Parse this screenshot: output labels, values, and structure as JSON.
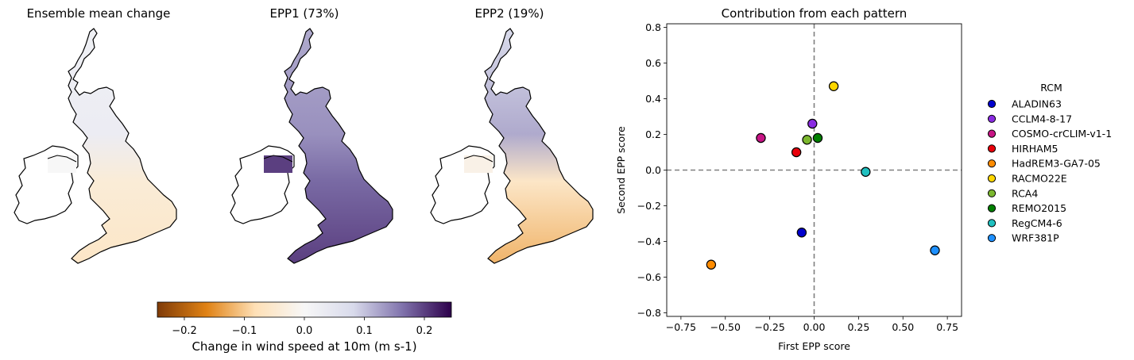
{
  "maps": [
    {
      "title": "Ensemble mean change"
    },
    {
      "title": "EPP1 (73%)"
    },
    {
      "title": "EPP2 (19%)"
    }
  ],
  "colorbar": {
    "label": "Change in wind speed at 10m (m s-1)",
    "ticks": [
      -0.2,
      -0.1,
      0.0,
      0.1,
      0.2
    ],
    "tick_labels": [
      "−0.2",
      "−0.1",
      "0.0",
      "0.1",
      "0.2"
    ],
    "range": [
      -0.245,
      0.245
    ],
    "colormap": "PuOr",
    "stops": [
      "#7f3b08",
      "#e08214",
      "#fee0b6",
      "#f7f7f7",
      "#d8daeb",
      "#8073ac",
      "#2d004b"
    ]
  },
  "chart_data": {
    "type": "scatter",
    "title": "Contribution from each pattern",
    "xlabel": "First EPP score",
    "ylabel": "Second EPP score",
    "xlim": [
      -0.83,
      0.83
    ],
    "ylim": [
      -0.82,
      0.82
    ],
    "xticks": [
      -0.75,
      -0.5,
      -0.25,
      0.0,
      0.25,
      0.5,
      0.75
    ],
    "xtick_labels": [
      "−0.75",
      "−0.50",
      "−0.25",
      "0.00",
      "0.25",
      "0.50",
      "0.75"
    ],
    "yticks": [
      -0.8,
      -0.6,
      -0.4,
      -0.2,
      0.0,
      0.2,
      0.4,
      0.6,
      0.8
    ],
    "ytick_labels": [
      "−0.8",
      "−0.6",
      "−0.4",
      "−0.2",
      "0.0",
      "0.2",
      "0.4",
      "0.6",
      "0.8"
    ],
    "grid": false,
    "reference_lines": {
      "x": 0.0,
      "y": 0.0,
      "style": "dashed",
      "color": "#808080"
    },
    "legend": {
      "title": "RCM",
      "placement": "outside-right"
    },
    "series": [
      {
        "name": "ALADIN63",
        "color": "#0000cd",
        "x": -0.07,
        "y": -0.35
      },
      {
        "name": "CCLM4-8-17",
        "color": "#8a2be2",
        "x": -0.01,
        "y": 0.26
      },
      {
        "name": "COSMO-crCLIM-v1-1",
        "color": "#c71585",
        "x": -0.3,
        "y": 0.18
      },
      {
        "name": "HIRHAM5",
        "color": "#e8000b",
        "x": -0.1,
        "y": 0.1
      },
      {
        "name": "HadREM3-GA7-05",
        "color": "#ff8c00",
        "x": -0.58,
        "y": -0.53
      },
      {
        "name": "RACMO22E",
        "color": "#ffd700",
        "x": 0.11,
        "y": 0.47
      },
      {
        "name": "RCA4",
        "color": "#7cb82f",
        "x": -0.04,
        "y": 0.17
      },
      {
        "name": "REMO2015",
        "color": "#008000",
        "x": 0.02,
        "y": 0.18
      },
      {
        "name": "RegCM4-6",
        "color": "#20c0c0",
        "x": 0.29,
        "y": -0.01
      },
      {
        "name": "WRF381P",
        "color": "#1e90ff",
        "x": 0.68,
        "y": -0.45
      }
    ]
  }
}
